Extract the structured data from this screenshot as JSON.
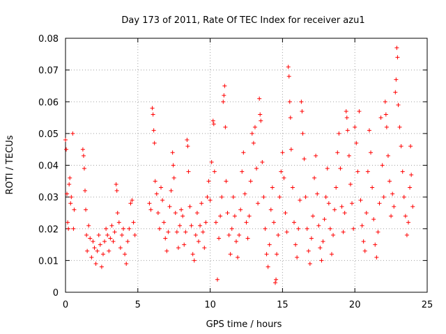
{
  "chart_data": {
    "type": "scatter",
    "title": "Day 173 of 2011, Rate Of TEC Index for receiver azu1",
    "xlabel": "GPS time / hours",
    "ylabel": "ROTI / TECUs",
    "xlim": [
      0,
      25
    ],
    "ylim": [
      0,
      0.08
    ],
    "xticks": [
      "0",
      "5",
      "10",
      "15",
      "20",
      "25"
    ],
    "yticks": [
      "0",
      "0.01",
      "0.02",
      "0.03",
      "0.04",
      "0.05",
      "0.06",
      "0.07",
      "0.08"
    ],
    "grid": true,
    "marker": "plus",
    "color": "#ff0000",
    "series": [
      {
        "points": [
          [
            0.0,
            0.048
          ],
          [
            0.05,
            0.045
          ],
          [
            0.1,
            0.031
          ],
          [
            0.15,
            0.022
          ],
          [
            0.2,
            0.02
          ],
          [
            0.25,
            0.034
          ],
          [
            0.3,
            0.036
          ],
          [
            0.35,
            0.028
          ],
          [
            0.4,
            0.03
          ],
          [
            0.5,
            0.05
          ],
          [
            0.55,
            0.02
          ],
          [
            0.6,
            0.026
          ],
          [
            1.2,
            0.045
          ],
          [
            1.25,
            0.043
          ],
          [
            1.3,
            0.039
          ],
          [
            1.35,
            0.032
          ],
          [
            1.4,
            0.026
          ],
          [
            1.45,
            0.018
          ],
          [
            1.5,
            0.013
          ],
          [
            1.6,
            0.021
          ],
          [
            1.7,
            0.017
          ],
          [
            1.8,
            0.011
          ],
          [
            1.9,
            0.016
          ],
          [
            2.0,
            0.014
          ],
          [
            2.1,
            0.009
          ],
          [
            2.2,
            0.013
          ],
          [
            2.3,
            0.018
          ],
          [
            2.4,
            0.015
          ],
          [
            2.5,
            0.008
          ],
          [
            2.6,
            0.012
          ],
          [
            2.7,
            0.016
          ],
          [
            2.8,
            0.02
          ],
          [
            2.9,
            0.018
          ],
          [
            3.0,
            0.013
          ],
          [
            3.1,
            0.017
          ],
          [
            3.2,
            0.021
          ],
          [
            3.3,
            0.016
          ],
          [
            3.4,
            0.019
          ],
          [
            3.5,
            0.034
          ],
          [
            3.55,
            0.032
          ],
          [
            3.6,
            0.025
          ],
          [
            3.7,
            0.022
          ],
          [
            3.8,
            0.014
          ],
          [
            3.9,
            0.018
          ],
          [
            4.0,
            0.02
          ],
          [
            4.1,
            0.012
          ],
          [
            4.2,
            0.009
          ],
          [
            4.3,
            0.016
          ],
          [
            4.4,
            0.02
          ],
          [
            4.5,
            0.028
          ],
          [
            4.6,
            0.029
          ],
          [
            4.7,
            0.022
          ],
          [
            4.8,
            0.018
          ],
          [
            5.8,
            0.028
          ],
          [
            5.9,
            0.026
          ],
          [
            6.0,
            0.058
          ],
          [
            6.05,
            0.056
          ],
          [
            6.1,
            0.051
          ],
          [
            6.15,
            0.047
          ],
          [
            6.2,
            0.035
          ],
          [
            6.3,
            0.031
          ],
          [
            6.4,
            0.025
          ],
          [
            6.5,
            0.02
          ],
          [
            6.6,
            0.033
          ],
          [
            6.7,
            0.029
          ],
          [
            6.8,
            0.022
          ],
          [
            6.9,
            0.017
          ],
          [
            7.0,
            0.013
          ],
          [
            7.1,
            0.019
          ],
          [
            7.2,
            0.027
          ],
          [
            7.3,
            0.032
          ],
          [
            7.4,
            0.044
          ],
          [
            7.45,
            0.04
          ],
          [
            7.5,
            0.036
          ],
          [
            7.6,
            0.025
          ],
          [
            7.7,
            0.019
          ],
          [
            7.8,
            0.014
          ],
          [
            7.9,
            0.021
          ],
          [
            8.0,
            0.026
          ],
          [
            8.1,
            0.024
          ],
          [
            8.2,
            0.015
          ],
          [
            8.3,
            0.019
          ],
          [
            8.4,
            0.048
          ],
          [
            8.45,
            0.046
          ],
          [
            8.5,
            0.038
          ],
          [
            8.6,
            0.027
          ],
          [
            8.7,
            0.021
          ],
          [
            8.8,
            0.012
          ],
          [
            8.9,
            0.01
          ],
          [
            9.0,
            0.018
          ],
          [
            9.1,
            0.025
          ],
          [
            9.2,
            0.016
          ],
          [
            9.3,
            0.021
          ],
          [
            9.4,
            0.028
          ],
          [
            9.5,
            0.019
          ],
          [
            9.6,
            0.014
          ],
          [
            9.7,
            0.022
          ],
          [
            9.8,
            0.03
          ],
          [
            9.9,
            0.035
          ],
          [
            10.0,
            0.029
          ],
          [
            10.1,
            0.041
          ],
          [
            10.2,
            0.054
          ],
          [
            10.25,
            0.053
          ],
          [
            10.3,
            0.038
          ],
          [
            10.4,
            0.022
          ],
          [
            10.5,
            0.004
          ],
          [
            10.6,
            0.017
          ],
          [
            10.7,
            0.024
          ],
          [
            10.8,
            0.03
          ],
          [
            10.9,
            0.06
          ],
          [
            10.95,
            0.062
          ],
          [
            11.0,
            0.065
          ],
          [
            11.05,
            0.052
          ],
          [
            11.1,
            0.035
          ],
          [
            11.2,
            0.025
          ],
          [
            11.3,
            0.018
          ],
          [
            11.4,
            0.012
          ],
          [
            11.5,
            0.02
          ],
          [
            11.6,
            0.03
          ],
          [
            11.7,
            0.024
          ],
          [
            11.8,
            0.016
          ],
          [
            11.9,
            0.011
          ],
          [
            12.0,
            0.018
          ],
          [
            12.1,
            0.026
          ],
          [
            12.2,
            0.038
          ],
          [
            12.3,
            0.044
          ],
          [
            12.4,
            0.031
          ],
          [
            12.5,
            0.022
          ],
          [
            12.6,
            0.017
          ],
          [
            12.7,
            0.024
          ],
          [
            12.8,
            0.035
          ],
          [
            12.9,
            0.05
          ],
          [
            13.0,
            0.047
          ],
          [
            13.1,
            0.052
          ],
          [
            13.2,
            0.039
          ],
          [
            13.3,
            0.028
          ],
          [
            13.4,
            0.061
          ],
          [
            13.45,
            0.056
          ],
          [
            13.5,
            0.054
          ],
          [
            13.6,
            0.041
          ],
          [
            13.7,
            0.03
          ],
          [
            13.8,
            0.02
          ],
          [
            13.9,
            0.012
          ],
          [
            14.0,
            0.008
          ],
          [
            14.1,
            0.015
          ],
          [
            14.2,
            0.026
          ],
          [
            14.3,
            0.033
          ],
          [
            14.4,
            0.022
          ],
          [
            14.5,
            0.003
          ],
          [
            14.55,
            0.004
          ],
          [
            14.6,
            0.012
          ],
          [
            14.7,
            0.018
          ],
          [
            14.8,
            0.03
          ],
          [
            14.9,
            0.038
          ],
          [
            15.0,
            0.044
          ],
          [
            15.1,
            0.036
          ],
          [
            15.2,
            0.025
          ],
          [
            15.3,
            0.019
          ],
          [
            15.4,
            0.071
          ],
          [
            15.45,
            0.068
          ],
          [
            15.5,
            0.06
          ],
          [
            15.55,
            0.055
          ],
          [
            15.6,
            0.045
          ],
          [
            15.7,
            0.033
          ],
          [
            15.8,
            0.022
          ],
          [
            15.9,
            0.015
          ],
          [
            16.0,
            0.011
          ],
          [
            16.1,
            0.02
          ],
          [
            16.2,
            0.029
          ],
          [
            16.3,
            0.06
          ],
          [
            16.35,
            0.057
          ],
          [
            16.4,
            0.05
          ],
          [
            16.5,
            0.042
          ],
          [
            16.6,
            0.03
          ],
          [
            16.7,
            0.02
          ],
          [
            16.8,
            0.013
          ],
          [
            16.9,
            0.009
          ],
          [
            17.0,
            0.017
          ],
          [
            17.1,
            0.024
          ],
          [
            17.2,
            0.036
          ],
          [
            17.3,
            0.043
          ],
          [
            17.4,
            0.031
          ],
          [
            17.5,
            0.021
          ],
          [
            17.6,
            0.014
          ],
          [
            17.7,
            0.01
          ],
          [
            17.8,
            0.016
          ],
          [
            17.9,
            0.023
          ],
          [
            18.0,
            0.03
          ],
          [
            18.1,
            0.039
          ],
          [
            18.2,
            0.028
          ],
          [
            18.3,
            0.02
          ],
          [
            18.4,
            0.012
          ],
          [
            18.5,
            0.018
          ],
          [
            18.6,
            0.026
          ],
          [
            18.7,
            0.033
          ],
          [
            18.8,
            0.044
          ],
          [
            18.9,
            0.05
          ],
          [
            19.0,
            0.039
          ],
          [
            19.1,
            0.027
          ],
          [
            19.2,
            0.019
          ],
          [
            19.3,
            0.025
          ],
          [
            19.4,
            0.057
          ],
          [
            19.45,
            0.055
          ],
          [
            19.5,
            0.051
          ],
          [
            19.6,
            0.043
          ],
          [
            19.7,
            0.034
          ],
          [
            19.8,
            0.028
          ],
          [
            19.9,
            0.02
          ],
          [
            20.0,
            0.052
          ],
          [
            20.1,
            0.047
          ],
          [
            20.2,
            0.038
          ],
          [
            20.3,
            0.057
          ],
          [
            20.4,
            0.029
          ],
          [
            20.5,
            0.021
          ],
          [
            20.6,
            0.016
          ],
          [
            20.7,
            0.013
          ],
          [
            20.8,
            0.025
          ],
          [
            20.9,
            0.038
          ],
          [
            21.0,
            0.051
          ],
          [
            21.1,
            0.044
          ],
          [
            21.2,
            0.033
          ],
          [
            21.3,
            0.023
          ],
          [
            21.4,
            0.015
          ],
          [
            21.5,
            0.011
          ],
          [
            21.6,
            0.019
          ],
          [
            21.7,
            0.028
          ],
          [
            21.8,
            0.055
          ],
          [
            21.9,
            0.04
          ],
          [
            22.0,
            0.03
          ],
          [
            22.1,
            0.06
          ],
          [
            22.15,
            0.056
          ],
          [
            22.2,
            0.052
          ],
          [
            22.3,
            0.043
          ],
          [
            22.4,
            0.035
          ],
          [
            22.5,
            0.024
          ],
          [
            22.6,
            0.031
          ],
          [
            22.7,
            0.027
          ],
          [
            22.8,
            0.063
          ],
          [
            22.85,
            0.067
          ],
          [
            22.9,
            0.077
          ],
          [
            22.95,
            0.074
          ],
          [
            23.0,
            0.059
          ],
          [
            23.1,
            0.052
          ],
          [
            23.2,
            0.046
          ],
          [
            23.3,
            0.038
          ],
          [
            23.4,
            0.03
          ],
          [
            23.5,
            0.024
          ],
          [
            23.6,
            0.018
          ],
          [
            23.7,
            0.022
          ],
          [
            23.8,
            0.033
          ],
          [
            23.85,
            0.046
          ],
          [
            23.9,
            0.037
          ],
          [
            24.0,
            0.027
          ]
        ]
      }
    ]
  }
}
